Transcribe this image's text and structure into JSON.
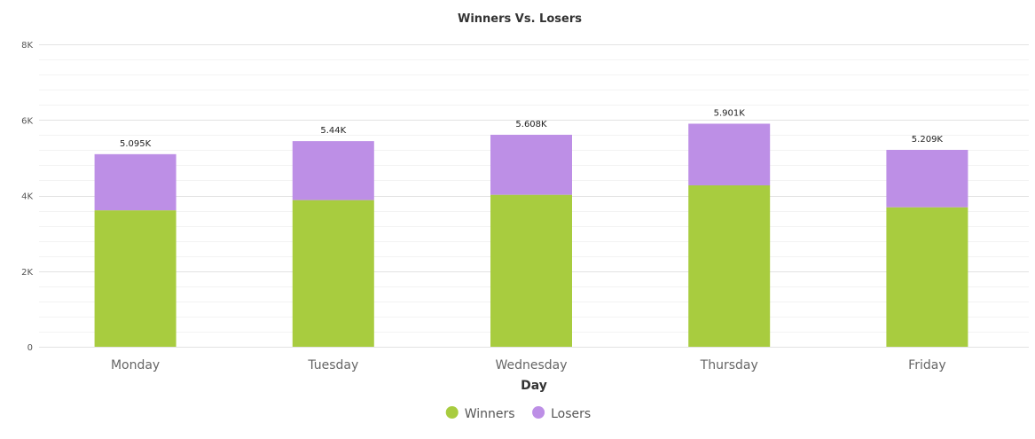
{
  "chart_data": {
    "type": "bar",
    "stacked": true,
    "title": "Winners Vs. Losers",
    "xlabel": "Day",
    "ylabel": "",
    "ylim": [
      0,
      8000
    ],
    "yticks": [
      {
        "value": 0,
        "label": "0"
      },
      {
        "value": 2000,
        "label": "2K"
      },
      {
        "value": 4000,
        "label": "4K"
      },
      {
        "value": 6000,
        "label": "6K"
      },
      {
        "value": 8000,
        "label": "8K"
      }
    ],
    "grid": true,
    "legend_position": "bottom-center",
    "categories": [
      "Monday",
      "Tuesday",
      "Wednesday",
      "Thursday",
      "Friday"
    ],
    "series": [
      {
        "name": "Winners",
        "color": "#a8cc3f",
        "values": [
          3610,
          3880,
          4020,
          4270,
          3690
        ]
      },
      {
        "name": "Losers",
        "color": "#bd8fe6",
        "values": [
          1485,
          1560,
          1588,
          1631,
          1519
        ]
      }
    ],
    "totals": [
      5095,
      5440,
      5608,
      5901,
      5209
    ],
    "total_labels": [
      "5.095K",
      "5.44K",
      "5.608K",
      "5.901K",
      "5.209K"
    ]
  }
}
